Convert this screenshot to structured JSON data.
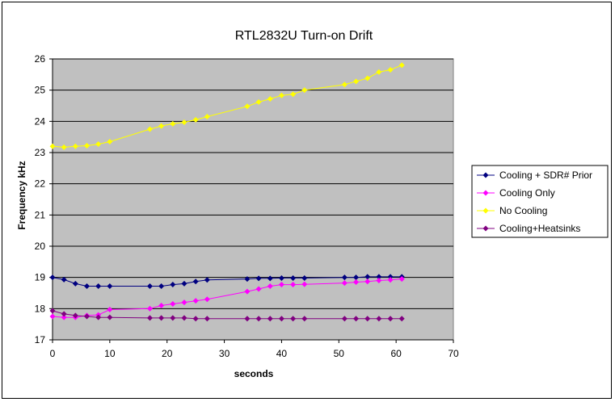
{
  "chart_data": {
    "type": "line",
    "title": "RTL2832U Turn-on Drift",
    "xlabel": "seconds",
    "ylabel": "Frequency kHz",
    "xlim": [
      0,
      70
    ],
    "ylim": [
      17,
      26
    ],
    "x_ticks": [
      "0",
      "10",
      "20",
      "30",
      "40",
      "50",
      "60",
      "70"
    ],
    "y_ticks": [
      "17",
      "18",
      "19",
      "20",
      "21",
      "22",
      "23",
      "24",
      "25",
      "26"
    ],
    "grid": "horizontal",
    "plot_background": "#c0c0c0",
    "legend_position": "right",
    "series": [
      {
        "name": "Cooling + SDR# Prior",
        "color": "#000080",
        "points": [
          [
            0,
            19.0
          ],
          [
            2,
            18.93
          ],
          [
            4,
            18.8
          ],
          [
            6,
            18.72
          ],
          [
            8,
            18.72
          ],
          [
            10,
            18.72
          ],
          [
            17,
            18.72
          ],
          [
            19,
            18.72
          ],
          [
            21,
            18.77
          ],
          [
            23,
            18.8
          ],
          [
            25,
            18.87
          ],
          [
            27,
            18.92
          ],
          [
            34,
            18.95
          ],
          [
            36,
            18.97
          ],
          [
            38,
            18.97
          ],
          [
            40,
            18.98
          ],
          [
            42,
            18.98
          ],
          [
            44,
            18.98
          ],
          [
            51,
            19.0
          ],
          [
            53,
            19.0
          ],
          [
            55,
            19.02
          ],
          [
            57,
            19.02
          ],
          [
            59,
            19.02
          ],
          [
            61,
            19.02
          ]
        ]
      },
      {
        "name": "Cooling Only",
        "color": "#ff00ff",
        "points": [
          [
            0,
            17.75
          ],
          [
            2,
            17.72
          ],
          [
            4,
            17.72
          ],
          [
            6,
            17.78
          ],
          [
            8,
            17.8
          ],
          [
            10,
            17.97
          ],
          [
            17,
            18.0
          ],
          [
            19,
            18.1
          ],
          [
            21,
            18.15
          ],
          [
            23,
            18.2
          ],
          [
            25,
            18.25
          ],
          [
            27,
            18.3
          ],
          [
            34,
            18.55
          ],
          [
            36,
            18.63
          ],
          [
            38,
            18.72
          ],
          [
            40,
            18.77
          ],
          [
            42,
            18.77
          ],
          [
            44,
            18.78
          ],
          [
            51,
            18.82
          ],
          [
            53,
            18.85
          ],
          [
            55,
            18.87
          ],
          [
            57,
            18.9
          ],
          [
            59,
            18.92
          ],
          [
            61,
            18.95
          ]
        ]
      },
      {
        "name": "No Cooling",
        "color": "#ffff00",
        "points": [
          [
            0,
            23.2
          ],
          [
            2,
            23.17
          ],
          [
            4,
            23.2
          ],
          [
            6,
            23.22
          ],
          [
            8,
            23.27
          ],
          [
            10,
            23.35
          ],
          [
            17,
            23.75
          ],
          [
            19,
            23.85
          ],
          [
            21,
            23.92
          ],
          [
            23,
            23.97
          ],
          [
            25,
            24.05
          ],
          [
            27,
            24.15
          ],
          [
            34,
            24.48
          ],
          [
            36,
            24.62
          ],
          [
            38,
            24.72
          ],
          [
            40,
            24.83
          ],
          [
            42,
            24.87
          ],
          [
            44,
            25.0
          ],
          [
            51,
            25.18
          ],
          [
            53,
            25.28
          ],
          [
            55,
            25.38
          ],
          [
            57,
            25.58
          ],
          [
            59,
            25.65
          ],
          [
            61,
            25.8
          ]
        ]
      },
      {
        "name": "Cooling+Heatsinks",
        "color": "#800080",
        "points": [
          [
            0,
            17.93
          ],
          [
            2,
            17.83
          ],
          [
            4,
            17.78
          ],
          [
            6,
            17.75
          ],
          [
            8,
            17.72
          ],
          [
            10,
            17.72
          ],
          [
            17,
            17.7
          ],
          [
            19,
            17.7
          ],
          [
            21,
            17.7
          ],
          [
            23,
            17.7
          ],
          [
            25,
            17.68
          ],
          [
            27,
            17.68
          ],
          [
            34,
            17.68
          ],
          [
            36,
            17.68
          ],
          [
            38,
            17.68
          ],
          [
            40,
            17.68
          ],
          [
            42,
            17.68
          ],
          [
            44,
            17.68
          ],
          [
            51,
            17.68
          ],
          [
            53,
            17.68
          ],
          [
            55,
            17.68
          ],
          [
            57,
            17.68
          ],
          [
            59,
            17.68
          ],
          [
            61,
            17.68
          ]
        ]
      }
    ]
  }
}
